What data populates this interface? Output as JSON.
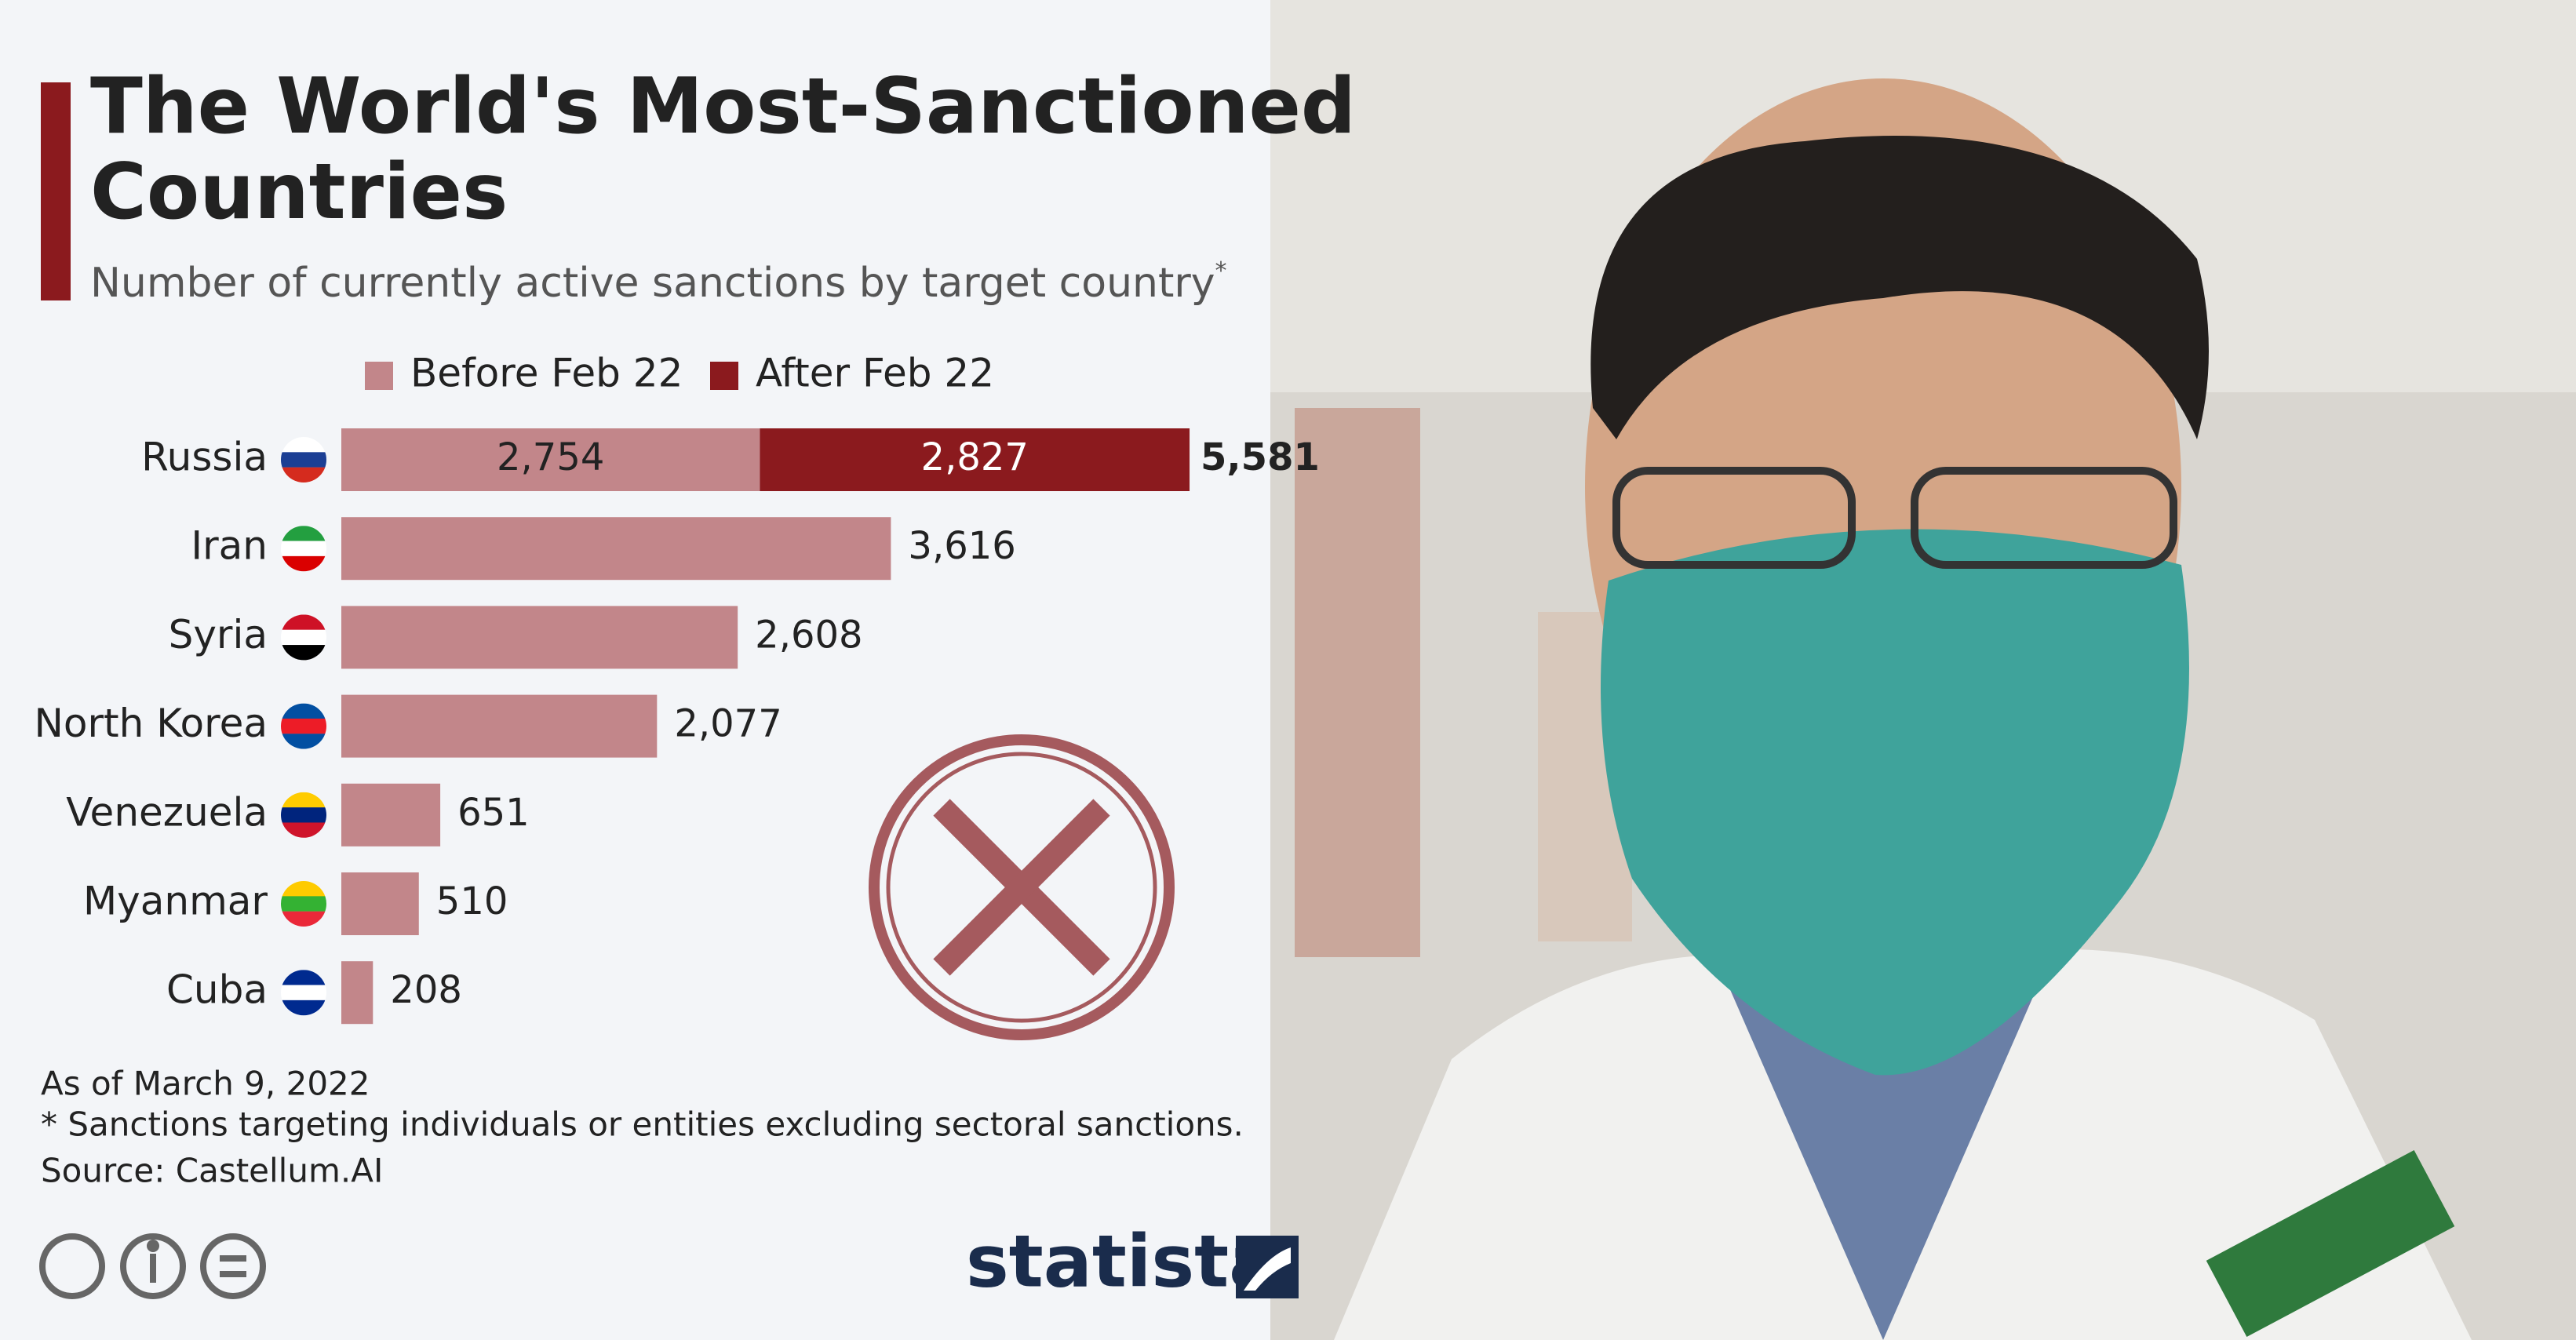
{
  "chart_data": {
    "type": "stacked-bar-horizontal",
    "title": [
      "The World's Most-Sanctioned",
      "Countries"
    ],
    "subtitle": "Number of currently active sanctions by target country",
    "subtitle_mark": "*",
    "categories": [
      "Russia",
      "Iran",
      "Syria",
      "North Korea",
      "Venezuela",
      "Myanmar",
      "Cuba"
    ],
    "series": [
      {
        "name": "Before Feb 22",
        "color": "#c2868a",
        "values": [
          2754,
          3616,
          2608,
          2077,
          651,
          510,
          208
        ],
        "value_labels": [
          "2,754",
          "3,616",
          "2,608",
          "2,077",
          "651",
          "510",
          "208"
        ]
      },
      {
        "name": "After Feb 22",
        "color": "#8b1a1e",
        "values": [
          2827,
          null,
          null,
          null,
          null,
          null,
          null
        ],
        "value_labels": [
          "2,827",
          null,
          null,
          null,
          null,
          null,
          null
        ]
      }
    ],
    "totals": [
      5581,
      null,
      null,
      null,
      null,
      null,
      null
    ],
    "total_labels": [
      "5,581",
      null,
      null,
      null,
      null,
      null,
      null
    ],
    "notes": [
      "As of March 9, 2022",
      "* Sanctions targeting individuals or entities excluding sectoral sanctions.",
      "Source: Castellum.AI"
    ],
    "brand": "statista"
  }
}
